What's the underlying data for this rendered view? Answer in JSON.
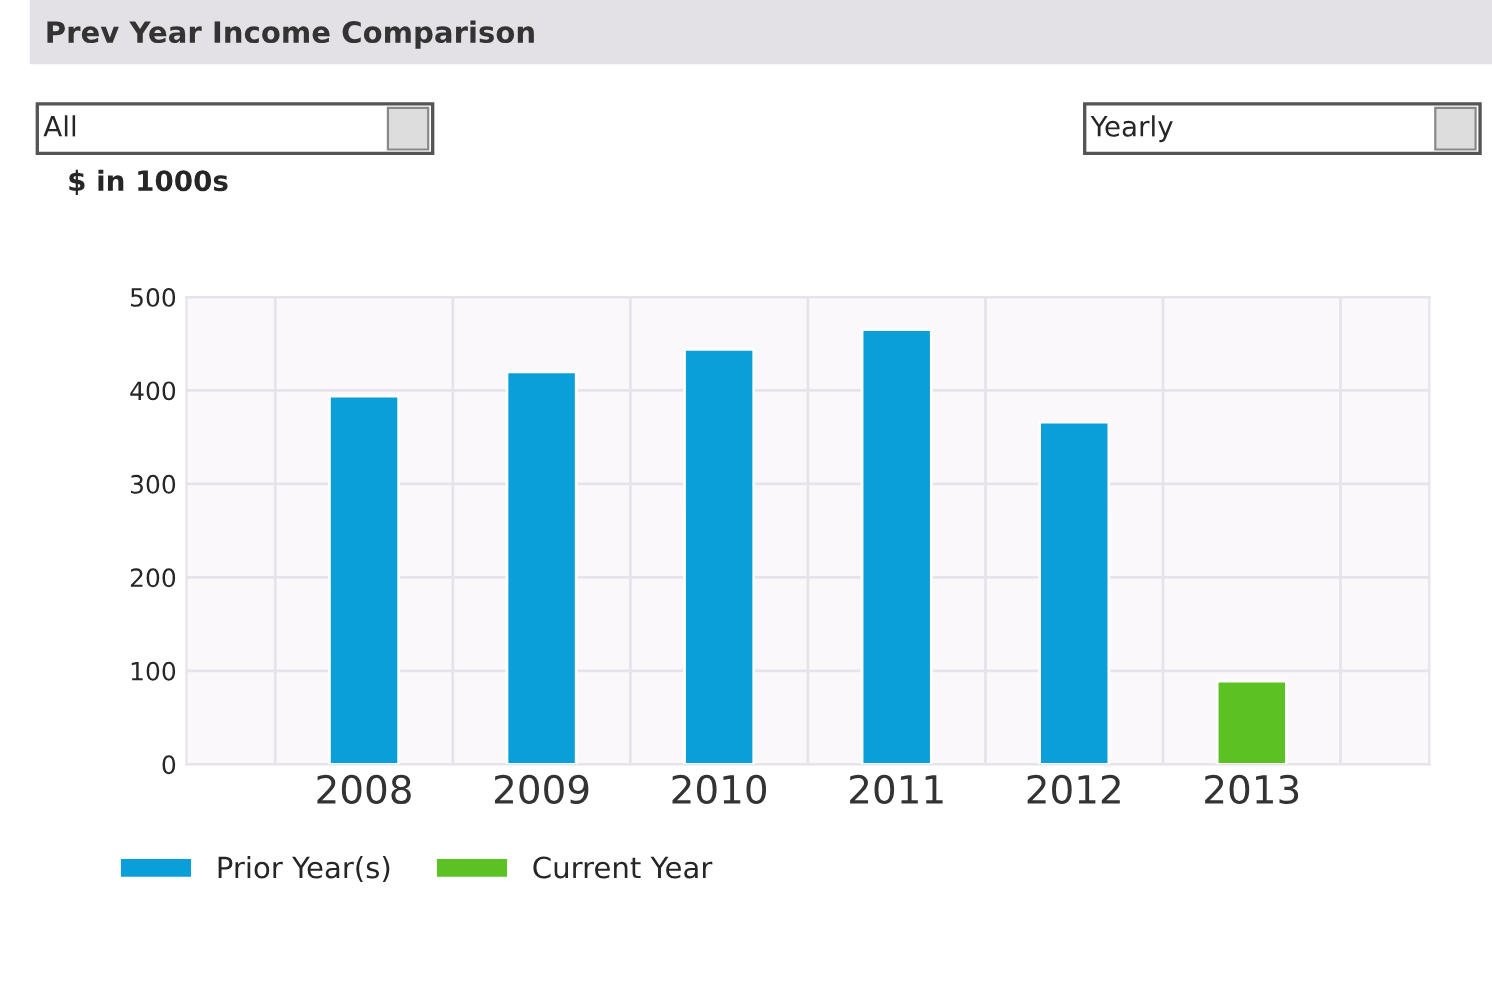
{
  "chart_data": {
    "type": "bar",
    "title": "Prev Year Income Comparison",
    "ylabel": "$ in 1000s",
    "categories": [
      "2008",
      "2009",
      "2010",
      "2011",
      "2012",
      "2013"
    ],
    "stacked": true,
    "series": [
      {
        "name": "Prior Year(s)",
        "color": "#0a9fd8",
        "values": [
          394,
          420,
          444,
          465,
          366,
          null
        ]
      },
      {
        "name": "Current Year",
        "color": "#5cc223",
        "values": [
          null,
          null,
          null,
          null,
          null,
          89
        ]
      }
    ],
    "ylim": [
      0,
      500
    ],
    "yticks": [
      0,
      100,
      200,
      300,
      400,
      500
    ],
    "grid": true,
    "legend": "bottom left",
    "annotations": [
      "All",
      "Yearly"
    ]
  }
}
